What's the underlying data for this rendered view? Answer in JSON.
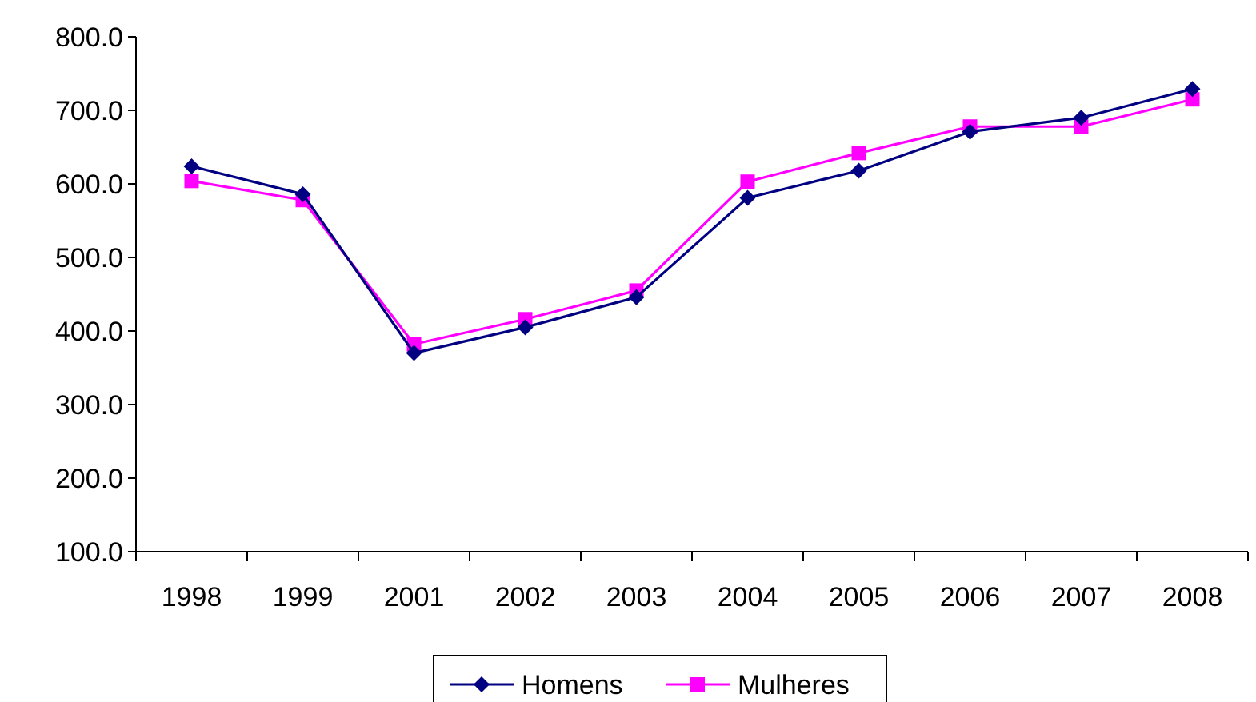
{
  "chart_data": {
    "type": "line",
    "categories": [
      "1998",
      "1999",
      "2001",
      "2002",
      "2003",
      "2004",
      "2005",
      "2006",
      "2007",
      "2008"
    ],
    "series": [
      {
        "name": "Homens",
        "color": "#000080",
        "marker": "diamond",
        "values": [
          624,
          586,
          370,
          405,
          446,
          581,
          618,
          671,
          690,
          729
        ]
      },
      {
        "name": "Mulheres",
        "color": "#ff00ff",
        "marker": "square",
        "values": [
          604,
          578,
          382,
          416,
          455,
          603,
          642,
          678,
          678,
          715
        ]
      }
    ],
    "ylim": [
      100,
      800
    ],
    "yticks": [
      {
        "value": 100,
        "label": "100.0"
      },
      {
        "value": 200,
        "label": "200.0"
      },
      {
        "value": 300,
        "label": "300.0"
      },
      {
        "value": 400,
        "label": "400.0"
      },
      {
        "value": 500,
        "label": "500.0"
      },
      {
        "value": 600,
        "label": "600.0"
      },
      {
        "value": 700,
        "label": "700.0"
      },
      {
        "value": 800,
        "label": "800.0"
      }
    ],
    "grid": false,
    "legend": "bottom"
  }
}
